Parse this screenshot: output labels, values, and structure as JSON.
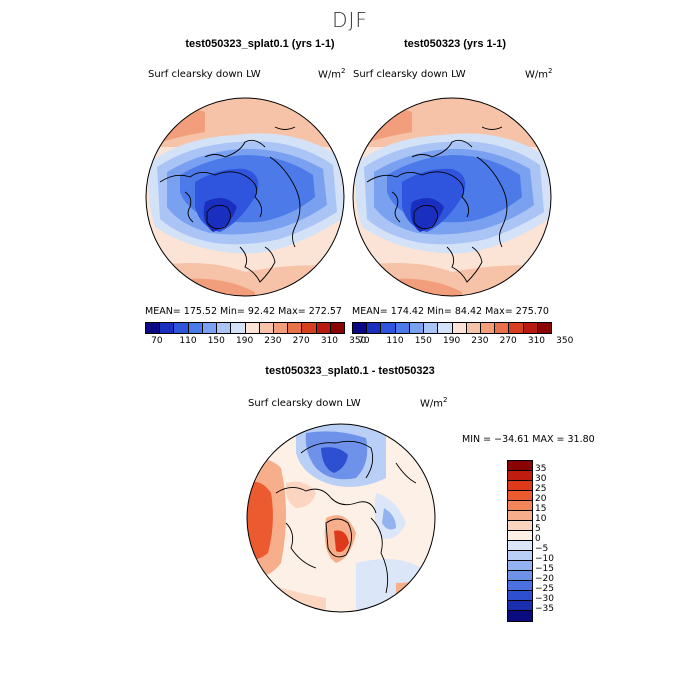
{
  "figure": {
    "suptitle": "DJF"
  },
  "panels": [
    {
      "title": "test050323_splat0.1 (yrs 1-1)",
      "variable": "Surf clearsky down LW",
      "units_base": "W/m",
      "units_exp": "2",
      "stats": "MEAN= 175.52  Min=  92.42  Max= 272.57"
    },
    {
      "title": "test050323 (yrs 1-1)",
      "variable": "Surf clearsky down LW",
      "units_base": "W/m",
      "units_exp": "2",
      "stats": "MEAN= 174.42  Min=  84.42  Max= 275.70"
    },
    {
      "title": "test050323_splat0.1 - test050323",
      "variable": "Surf clearsky down LW",
      "units_base": "W/m",
      "units_exp": "2",
      "stats": "MIN = −34.61 MAX =  31.80"
    }
  ],
  "colorbar_top": {
    "colors": [
      "#0a0a85",
      "#1a2fc0",
      "#2f55df",
      "#4c7ae9",
      "#7aa0f0",
      "#a9c4f5",
      "#d4e2f8",
      "#fbe4d6",
      "#f7c3a8",
      "#f29e7c",
      "#e8714c",
      "#d64020",
      "#b81a10",
      "#8a0404"
    ],
    "tick_labels": [
      "70",
      "110",
      "150",
      "190",
      "230",
      "270",
      "310",
      "350"
    ]
  },
  "colorbar_diff": {
    "colors_top_to_bottom": [
      "#8a0404",
      "#c01c10",
      "#dc3a1a",
      "#ec5a30",
      "#f2855a",
      "#f7ae8a",
      "#fbd5c0",
      "#fdf0e6",
      "#dbe6f8",
      "#b9cff5",
      "#93b2f0",
      "#6e92ea",
      "#4b70e0",
      "#2e4fd0",
      "#1a2fb0",
      "#0b0b80"
    ],
    "labels": [
      "35",
      "30",
      "25",
      "20",
      "15",
      "10",
      "5",
      "0",
      "−5",
      "−10",
      "−15",
      "−20",
      "−25",
      "−30",
      "−35"
    ]
  }
}
